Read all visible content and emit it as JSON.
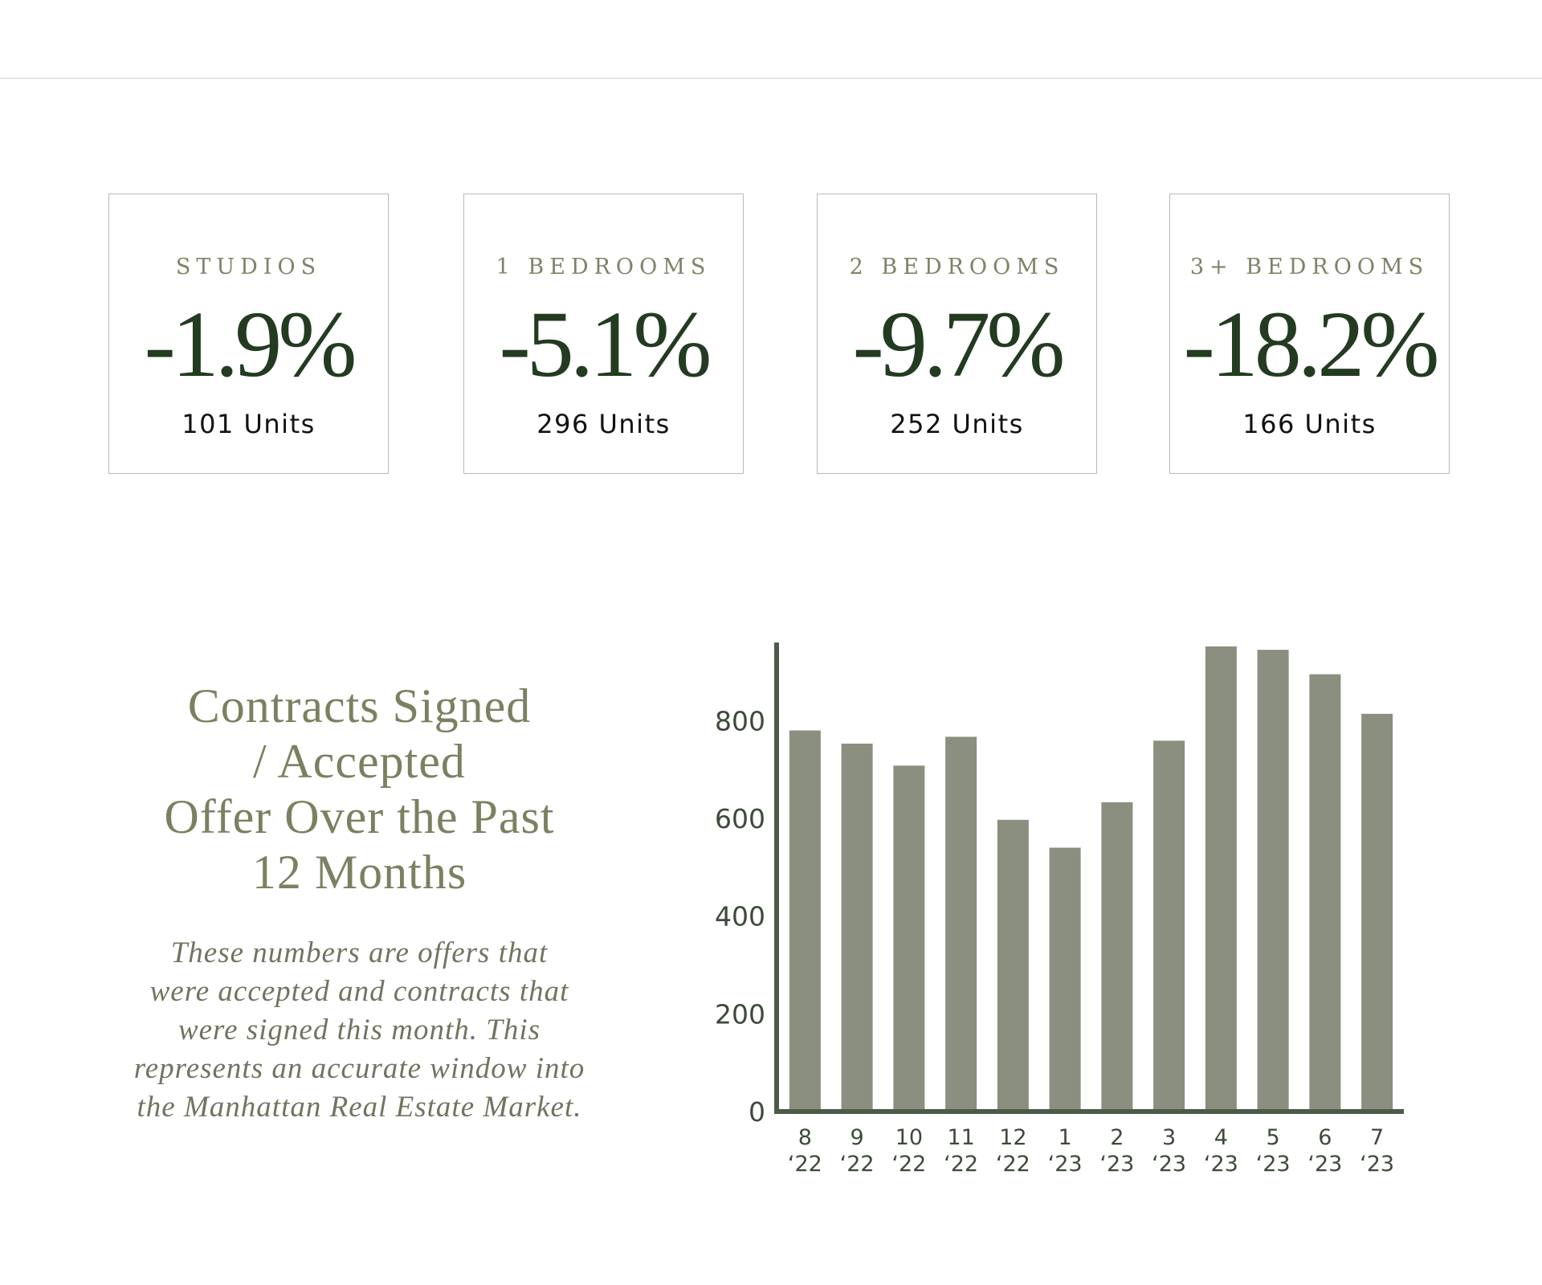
{
  "stats": [
    {
      "label": "STUDIOS",
      "value": "-1.9%",
      "units": "101 Units"
    },
    {
      "label": "1 BEDROOMS",
      "value": "-5.1%",
      "units": "296 Units"
    },
    {
      "label": "2 BEDROOMS",
      "value": "-9.7%",
      "units": "252 Units"
    },
    {
      "label": "3+ BEDROOMS",
      "value": "-18.2%",
      "units": "166 Units"
    }
  ],
  "section": {
    "title_lines": [
      "Contracts Signed",
      "/ Accepted",
      "Offer Over the Past",
      "12 Months"
    ],
    "note_lines": [
      "These numbers are offers that",
      "were accepted and contracts that",
      "were signed this month. This",
      "represents an accurate window into",
      "the Manhattan Real Estate Market."
    ]
  },
  "colors": {
    "bar": "#8a8f80",
    "axis": "#4c5b48",
    "value_text": "#233b20",
    "label_text": "#7c8467"
  },
  "chart_data": {
    "type": "bar",
    "categories": [
      [
        "8",
        "‘22"
      ],
      [
        "9",
        "‘22"
      ],
      [
        "10",
        "‘22"
      ],
      [
        "11",
        "‘22"
      ],
      [
        "12",
        "‘22"
      ],
      [
        "1",
        "‘23"
      ],
      [
        "2",
        "‘23"
      ],
      [
        "3",
        "‘23"
      ],
      [
        "4",
        "‘23"
      ],
      [
        "5",
        "‘23"
      ],
      [
        "6",
        "‘23"
      ],
      [
        "7",
        "‘23"
      ]
    ],
    "values": [
      780,
      753,
      708,
      767,
      597,
      540,
      633,
      759,
      952,
      945,
      895,
      814
    ],
    "ylim": [
      0,
      960
    ],
    "yticks": [
      0,
      200,
      400,
      600,
      800
    ],
    "grid": false,
    "title": "",
    "xlabel": "",
    "ylabel": ""
  }
}
